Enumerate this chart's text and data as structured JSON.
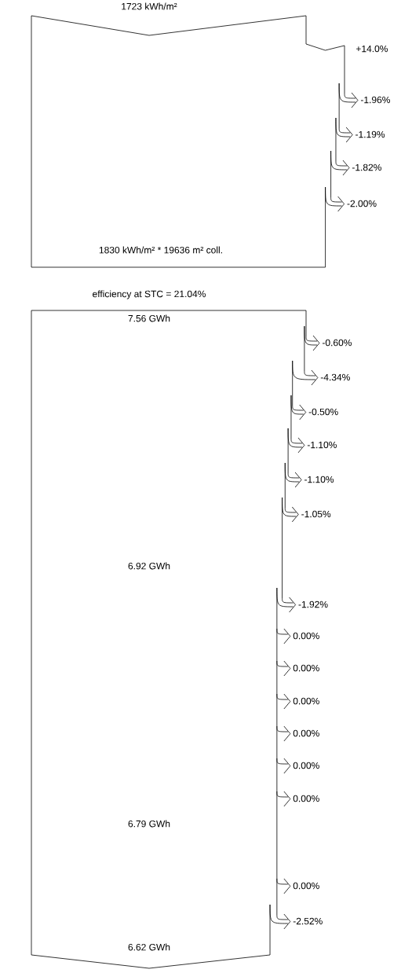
{
  "chart_data": {
    "type": "other",
    "categories": [
      null,
      null,
      null,
      null,
      null,
      null,
      null,
      null,
      null,
      null,
      null,
      null,
      null,
      null,
      null,
      null,
      null,
      null,
      null,
      null,
      null
    ],
    "values": [
      14.0,
      -1.96,
      -1.19,
      -1.82,
      -2.0,
      -0.6,
      -4.34,
      -0.5,
      -1.1,
      -1.1,
      -1.05,
      -1.92,
      0.0,
      0.0,
      0.0,
      0.0,
      0.0,
      0.0,
      0.0,
      -2.52,
      null
    ],
    "value_labels": [
      "+14.0%",
      "-1.96%",
      "-1.19%",
      "-1.82%",
      "-2.00%",
      "-0.60%",
      "-4.34%",
      "-0.50%",
      "-1.10%",
      "-1.10%",
      "-1.05%",
      "-1.92%",
      "0.00%",
      "0.00%",
      "0.00%",
      "0.00%",
      "0.00%",
      "0.00%",
      "0.00%",
      "-2.52%",
      null
    ],
    "annotations": [
      "1723 kWh/m²",
      "1830 kWh/m² * 19636 m² coll.",
      "efficiency at STC = 21.04%",
      "7.56 GWh",
      "6.92 GWh",
      "6.79 GWh",
      "6.62 GWh"
    ]
  }
}
